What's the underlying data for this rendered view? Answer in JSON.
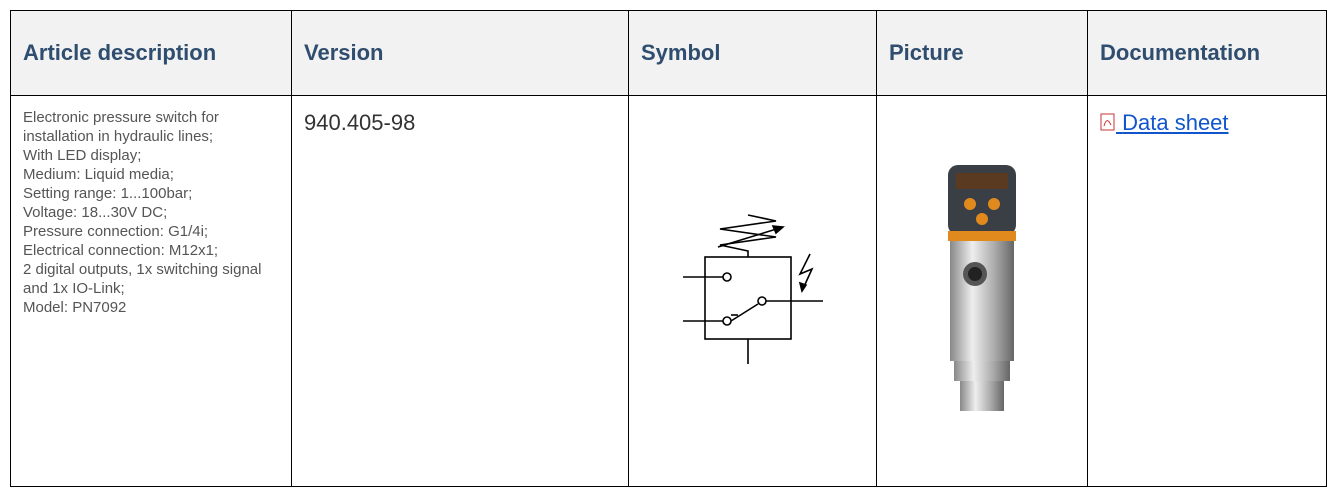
{
  "table": {
    "headers": [
      "Article description",
      "Version",
      "Symbol",
      "Picture",
      "Documentation"
    ],
    "rows": [
      {
        "description": [
          "Electronic pressure switch for installation in hydraulic lines;",
          "With LED display;",
          "Medium: Liquid media;",
          "Setting range: 1...100bar;",
          "Voltage: 18...30V DC;",
          "Pressure connection: G1/4i;",
          "Electrical connection: M12x1;",
          "2 digital outputs, 1x switching signal and 1x IO-Link;",
          "Model: PN7092"
        ],
        "version": "940.405-98",
        "documentation": "Data sheet"
      }
    ]
  }
}
